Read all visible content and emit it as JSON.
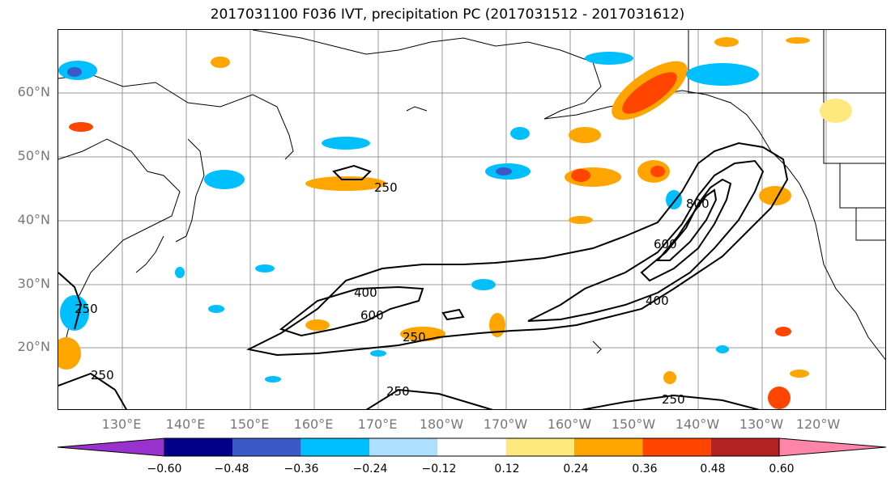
{
  "title": "2017031100 F036 IVT, precipitation PC (2017031512 - 2017031612)",
  "lat_labels": [
    "60°N",
    "50°N",
    "40°N",
    "30°N",
    "20°N"
  ],
  "lon_labels": [
    "130°E",
    "140°E",
    "150°E",
    "160°E",
    "170°E",
    "180°W",
    "170°W",
    "160°W",
    "150°W",
    "140°W",
    "130°W",
    "120°W"
  ],
  "contour_labels": {
    "c1": "250",
    "c2": "250",
    "c3": "250",
    "c4": "250",
    "c5": "250",
    "c6": "250",
    "c7": "400",
    "c8": "600",
    "c9": "400",
    "c10": "600",
    "c11": "800"
  },
  "colorbar": {
    "colors": [
      "#9932CC",
      "#00008B",
      "#3A5BC7",
      "#00BFFF",
      "#ADDFFF",
      "#FFFFFF",
      "#FFE97F",
      "#FFA500",
      "#FF4500",
      "#B22222",
      "#FF85A8"
    ],
    "ticks": [
      "−0.60",
      "−0.48",
      "−0.36",
      "−0.24",
      "−0.12",
      "0.12",
      "0.24",
      "0.36",
      "0.48",
      "0.60"
    ]
  }
}
